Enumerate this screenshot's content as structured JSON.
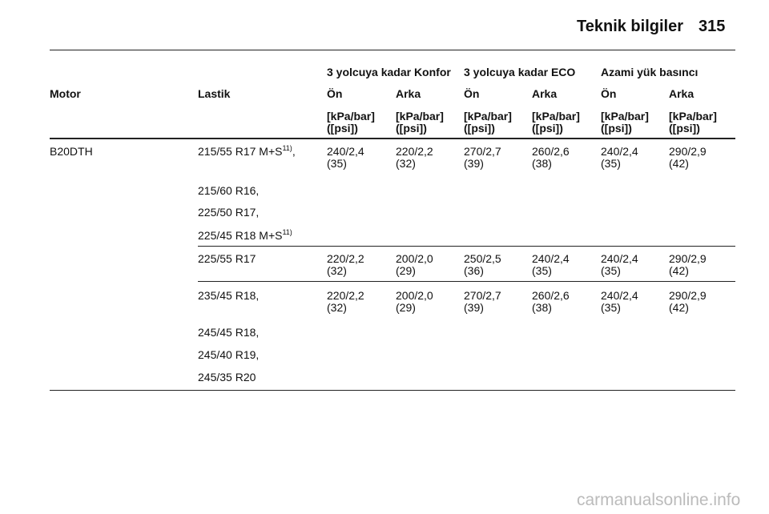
{
  "header": {
    "title": "Teknik bilgiler",
    "page": "315"
  },
  "table": {
    "groups": [
      "3 yolcuya kadar Konfor",
      "3 yolcuya kadar ECO",
      "Azami yük basıncı"
    ],
    "columns": [
      "Motor",
      "Lastik",
      "Ön",
      "Arka",
      "Ön",
      "Arka",
      "Ön",
      "Arka"
    ],
    "units": [
      [
        "[kPa/bar]",
        "([psi])"
      ],
      [
        "[kPa/bar]",
        "([psi])"
      ],
      [
        "[kPa/bar]",
        "([psi])"
      ],
      [
        "[kPa/bar]",
        "([psi])"
      ],
      [
        "[kPa/bar]",
        "([psi])"
      ],
      [
        "[kPa/bar]",
        "([psi])"
      ]
    ],
    "rows": [
      {
        "motor": "B20DTH",
        "tires": [
          {
            "text": "215/55 R17 M+S",
            "sup": "11)",
            "after": ","
          },
          {
            "text": "215/60 R16,"
          },
          {
            "text": "225/50 R17,"
          },
          {
            "text": "225/45 R18 M+S",
            "sup": "11)"
          }
        ],
        "values": [
          [
            "240/2,4",
            "(35)"
          ],
          [
            "220/2,2",
            "(32)"
          ],
          [
            "270/2,7",
            "(39)"
          ],
          [
            "260/2,6",
            "(38)"
          ],
          [
            "240/2,4",
            "(35)"
          ],
          [
            "290/2,9",
            "(42)"
          ]
        ]
      },
      {
        "tires": [
          {
            "text": "225/55 R17"
          }
        ],
        "values": [
          [
            "220/2,2",
            "(32)"
          ],
          [
            "200/2,0",
            "(29)"
          ],
          [
            "250/2,5",
            "(36)"
          ],
          [
            "240/2,4",
            "(35)"
          ],
          [
            "240/2,4",
            "(35)"
          ],
          [
            "290/2,9",
            "(42)"
          ]
        ]
      },
      {
        "tires": [
          {
            "text": "235/45 R18,"
          },
          {
            "text": "245/45 R18,"
          },
          {
            "text": "245/40 R19,"
          },
          {
            "text": "245/35 R20"
          }
        ],
        "values": [
          [
            "220/2,2",
            "(32)"
          ],
          [
            "200/2,0",
            "(29)"
          ],
          [
            "270/2,7",
            "(39)"
          ],
          [
            "260/2,6",
            "(38)"
          ],
          [
            "240/2,4",
            "(35)"
          ],
          [
            "290/2,9",
            "(42)"
          ]
        ]
      }
    ]
  },
  "watermark": "carmanualsonline.info"
}
